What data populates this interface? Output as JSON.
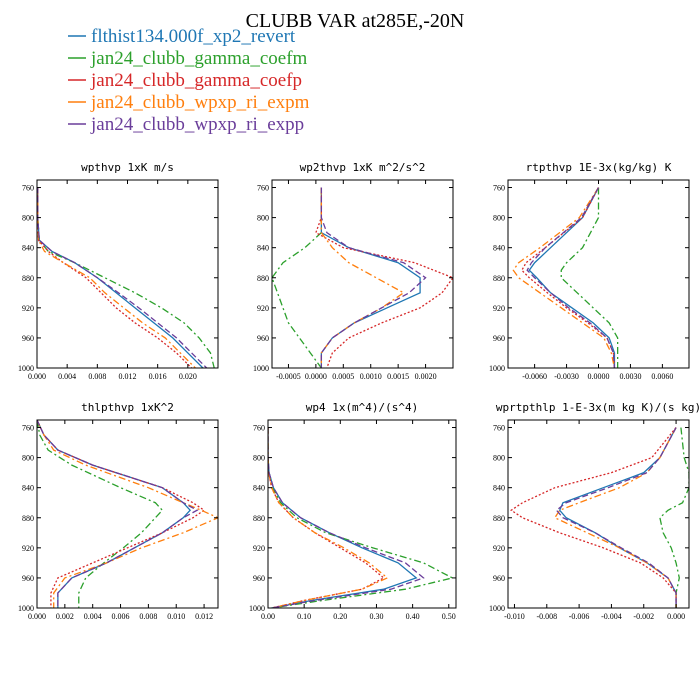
{
  "title": "CLUBB VAR at285E,-20N",
  "colors": {
    "flthist134.000f_xp2_revert": "#1f77b4",
    "jan24_clubb_gamma_coefm": "#2ca02c",
    "jan24_clubb_gamma_coefp": "#d62728",
    "jan24_clubb_wpxp_ri_expm": "#ff7f0e",
    "jan24_clubb_wpxp_ri_expp": "#6a3d9a"
  },
  "legend": [
    {
      "label": "flthist134.000f_xp2_revert",
      "color": "#1f77b4",
      "dash": "solid"
    },
    {
      "label": "jan24_clubb_gamma_coefm",
      "color": "#2ca02c",
      "dash": "dashdot"
    },
    {
      "label": "jan24_clubb_gamma_coefp",
      "color": "#d62728",
      "dash": "dotted"
    },
    {
      "label": "jan24_clubb_wpxp_ri_expm",
      "color": "#ff7f0e",
      "dash": "dashdot"
    },
    {
      "label": "jan24_clubb_wpxp_ri_expp",
      "color": "#6a3d9a",
      "dash": "dashed"
    }
  ],
  "chart_data": [
    {
      "type": "line",
      "title": "wpthvp  1xK m/s",
      "xlim": [
        0,
        0.024
      ],
      "ylim": [
        1000,
        750
      ],
      "xticks": [
        0,
        0.004,
        0.008,
        0.012,
        0.016,
        0.02
      ],
      "xtick_labels": [
        "0.000",
        "0.004",
        "0.008",
        "0.012",
        "0.016",
        "0.020"
      ],
      "yticks": [
        760,
        800,
        840,
        880,
        920,
        960,
        1000
      ],
      "ytick_labels": [
        "760",
        "800",
        "840",
        "880",
        "920",
        "960",
        "1000"
      ],
      "y": [
        760,
        800,
        830,
        845,
        860,
        880,
        900,
        920,
        940,
        960,
        980,
        1000
      ],
      "series": [
        {
          "name": "flthist134.000f_xp2_revert",
          "values": [
            0.0001,
            0.0001,
            0.0003,
            0.002,
            0.005,
            0.008,
            0.0105,
            0.013,
            0.0155,
            0.018,
            0.02,
            0.022
          ]
        },
        {
          "name": "jan24_clubb_gamma_coefm",
          "values": [
            0.0001,
            0.0001,
            0.0003,
            0.0015,
            0.005,
            0.009,
            0.013,
            0.0165,
            0.0195,
            0.0215,
            0.023,
            0.0235
          ]
        },
        {
          "name": "jan24_clubb_gamma_coefp",
          "values": [
            0.0001,
            0.0001,
            0.0002,
            0.0015,
            0.0035,
            0.0065,
            0.0085,
            0.0105,
            0.013,
            0.016,
            0.0185,
            0.0205
          ]
        },
        {
          "name": "jan24_clubb_wpxp_ri_expm",
          "values": [
            0.0001,
            0.0001,
            0.0002,
            0.001,
            0.0035,
            0.007,
            0.009,
            0.0115,
            0.014,
            0.017,
            0.019,
            0.021
          ]
        },
        {
          "name": "jan24_clubb_wpxp_ri_expp",
          "values": [
            0.0001,
            0.0001,
            0.0003,
            0.002,
            0.005,
            0.008,
            0.0108,
            0.0135,
            0.016,
            0.0185,
            0.0205,
            0.0225
          ]
        }
      ]
    },
    {
      "type": "line",
      "title": "wp2thvp  1xK m^2/s^2",
      "xlim": [
        -0.0008,
        0.0025
      ],
      "ylim": [
        1000,
        750
      ],
      "xticks": [
        -0.0005,
        0,
        0.0005,
        0.001,
        0.0015,
        0.002
      ],
      "xtick_labels": [
        "-0.0005",
        "0.0000",
        "0.0005",
        "0.0010",
        "0.0015",
        "0.0020"
      ],
      "yticks": [
        760,
        800,
        840,
        880,
        920,
        960,
        1000
      ],
      "ytick_labels": [
        "760",
        "800",
        "840",
        "880",
        "920",
        "960",
        "1000"
      ],
      "y": [
        760,
        800,
        820,
        840,
        860,
        880,
        900,
        920,
        940,
        960,
        980,
        1000
      ],
      "series": [
        {
          "name": "flthist134.000f_xp2_revert",
          "values": [
            0.0001,
            0.0001,
            0.0001,
            0.0006,
            0.0015,
            0.0019,
            0.0019,
            0.0013,
            0.0007,
            0.0003,
            0.0001,
            0.0001
          ]
        },
        {
          "name": "jan24_clubb_gamma_coefm",
          "values": [
            0.0001,
            0.0001,
            0.0001,
            -0.0002,
            -0.0006,
            -0.0008,
            -0.0007,
            -0.0006,
            -0.0005,
            -0.0003,
            -0.0001,
            0.0001
          ]
        },
        {
          "name": "jan24_clubb_gamma_coefp",
          "values": [
            0.0001,
            0.0001,
            0.0,
            0.0005,
            0.0018,
            0.0025,
            0.0023,
            0.0019,
            0.0012,
            0.0006,
            0.0003,
            0.0002
          ]
        },
        {
          "name": "jan24_clubb_wpxp_ri_expm",
          "values": [
            0.0001,
            0.0001,
            0.0001,
            0.0003,
            0.0006,
            0.0011,
            0.0016,
            0.0012,
            0.0007,
            0.0003,
            0.0001,
            0.0001
          ]
        },
        {
          "name": "jan24_clubb_wpxp_ri_expp",
          "values": [
            0.0001,
            0.0001,
            0.0002,
            0.0006,
            0.0016,
            0.002,
            0.0017,
            0.0012,
            0.0007,
            0.0003,
            0.0001,
            0.0001
          ]
        }
      ]
    },
    {
      "type": "line",
      "title": "rtpthvp  1E-3x(kg/kg) K",
      "xlim": [
        -0.0085,
        0.0085
      ],
      "ylim": [
        1000,
        750
      ],
      "xticks": [
        -0.006,
        -0.003,
        0,
        0.003,
        0.006
      ],
      "xtick_labels": [
        "-0.0060",
        "-0.0030",
        "0.0000",
        "0.0030",
        "0.0060"
      ],
      "yticks": [
        760,
        800,
        840,
        880,
        920,
        960,
        1000
      ],
      "ytick_labels": [
        "760",
        "800",
        "840",
        "880",
        "920",
        "960",
        "1000"
      ],
      "y": [
        760,
        800,
        840,
        860,
        870,
        880,
        900,
        920,
        940,
        960,
        980,
        1000
      ],
      "series": [
        {
          "name": "flthist134.000f_xp2_revert",
          "values": [
            0.0,
            -0.0015,
            -0.0045,
            -0.006,
            -0.0065,
            -0.0058,
            -0.0045,
            -0.0025,
            -0.0005,
            0.001,
            0.0015,
            0.0015
          ]
        },
        {
          "name": "jan24_clubb_gamma_coefm",
          "values": [
            0.0,
            0.0,
            -0.0015,
            -0.003,
            -0.0035,
            -0.0035,
            -0.002,
            -0.0005,
            0.001,
            0.0018,
            0.0018,
            0.0018
          ]
        },
        {
          "name": "jan24_clubb_gamma_coefp",
          "values": [
            0.0,
            -0.0015,
            -0.005,
            -0.0068,
            -0.0072,
            -0.0065,
            -0.0048,
            -0.003,
            -0.001,
            0.0008,
            0.0014,
            0.0015
          ]
        },
        {
          "name": "jan24_clubb_wpxp_ri_expm",
          "values": [
            0.0,
            -0.0018,
            -0.0055,
            -0.0075,
            -0.008,
            -0.0075,
            -0.0055,
            -0.0035,
            -0.0015,
            0.0005,
            0.0012,
            0.0015
          ]
        },
        {
          "name": "jan24_clubb_wpxp_ri_expp",
          "values": [
            0.0,
            -0.0016,
            -0.005,
            -0.0063,
            -0.0067,
            -0.006,
            -0.0045,
            -0.0028,
            -0.0008,
            0.0008,
            0.0014,
            0.0015
          ]
        }
      ]
    },
    {
      "type": "line",
      "title": "thlpthvp  1xK^2",
      "xlim": [
        0,
        0.013
      ],
      "ylim": [
        1000,
        750
      ],
      "xticks": [
        0,
        0.002,
        0.004,
        0.006,
        0.008,
        0.01,
        0.012
      ],
      "xtick_labels": [
        "0.000",
        "0.002",
        "0.004",
        "0.006",
        "0.008",
        "0.010",
        "0.012"
      ],
      "yticks": [
        760,
        800,
        840,
        880,
        920,
        960,
        1000
      ],
      "ytick_labels": [
        "760",
        "800",
        "840",
        "880",
        "920",
        "960",
        "1000"
      ],
      "y": [
        750,
        770,
        790,
        810,
        840,
        860,
        870,
        880,
        900,
        920,
        940,
        960,
        980,
        1000
      ],
      "series": [
        {
          "name": "flthist134.000f_xp2_revert",
          "values": [
            0.0,
            0.0005,
            0.0015,
            0.004,
            0.009,
            0.0105,
            0.011,
            0.0105,
            0.009,
            0.007,
            0.005,
            0.0025,
            0.0015,
            0.0015
          ]
        },
        {
          "name": "jan24_clubb_gamma_coefm",
          "values": [
            0.0,
            0.0002,
            0.0008,
            0.0025,
            0.006,
            0.0085,
            0.009,
            0.0085,
            0.0075,
            0.0062,
            0.0048,
            0.0035,
            0.003,
            0.003
          ]
        },
        {
          "name": "jan24_clubb_gamma_coefp",
          "values": [
            0.0,
            0.0005,
            0.0015,
            0.004,
            0.009,
            0.0112,
            0.012,
            0.0112,
            0.009,
            0.0065,
            0.004,
            0.0015,
            0.001,
            0.001
          ]
        },
        {
          "name": "jan24_clubb_wpxp_ri_expm",
          "values": [
            0.0,
            0.0005,
            0.0012,
            0.0035,
            0.008,
            0.0105,
            0.0118,
            0.013,
            0.0105,
            0.0075,
            0.005,
            0.002,
            0.0012,
            0.0012
          ]
        },
        {
          "name": "jan24_clubb_wpxp_ri_expp",
          "values": [
            0.0,
            0.0005,
            0.0015,
            0.004,
            0.009,
            0.0105,
            0.0115,
            0.0105,
            0.009,
            0.007,
            0.005,
            0.0025,
            0.0015,
            0.0015
          ]
        }
      ]
    },
    {
      "type": "line",
      "title": "wp4  1x(m^4)/(s^4)",
      "xlim": [
        0,
        0.52
      ],
      "ylim": [
        1000,
        750
      ],
      "xticks": [
        0,
        0.1,
        0.2,
        0.3,
        0.4,
        0.5
      ],
      "xtick_labels": [
        "0.00",
        "0.10",
        "0.20",
        "0.30",
        "0.40",
        "0.50"
      ],
      "yticks": [
        760,
        800,
        840,
        880,
        920,
        960,
        1000
      ],
      "ytick_labels": [
        "760",
        "800",
        "840",
        "880",
        "920",
        "960",
        "1000"
      ],
      "y": [
        760,
        800,
        820,
        840,
        860,
        880,
        900,
        920,
        940,
        960,
        975,
        990,
        1000
      ],
      "series": [
        {
          "name": "flthist134.000f_xp2_revert",
          "values": [
            0.0,
            0.0,
            0.003,
            0.015,
            0.04,
            0.09,
            0.17,
            0.26,
            0.36,
            0.41,
            0.32,
            0.12,
            0.01
          ]
        },
        {
          "name": "jan24_clubb_gamma_coefm",
          "values": [
            0.0,
            0.0,
            0.003,
            0.012,
            0.035,
            0.08,
            0.16,
            0.29,
            0.43,
            0.51,
            0.38,
            0.15,
            0.01
          ]
        },
        {
          "name": "jan24_clubb_gamma_coefp",
          "values": [
            0.0,
            0.0,
            0.002,
            0.01,
            0.03,
            0.07,
            0.13,
            0.2,
            0.27,
            0.32,
            0.26,
            0.1,
            0.01
          ]
        },
        {
          "name": "jan24_clubb_wpxp_ri_expm",
          "values": [
            0.0,
            0.0,
            0.002,
            0.01,
            0.03,
            0.07,
            0.13,
            0.21,
            0.28,
            0.33,
            0.26,
            0.1,
            0.01
          ]
        },
        {
          "name": "jan24_clubb_wpxp_ri_expp",
          "values": [
            0.0,
            0.0,
            0.003,
            0.015,
            0.04,
            0.09,
            0.17,
            0.27,
            0.38,
            0.43,
            0.34,
            0.13,
            0.01
          ]
        }
      ]
    },
    {
      "type": "line",
      "title": "wprtpthlp  1-E-3x(m kg K)/(s kg)",
      "xlim": [
        -0.0104,
        0.0008
      ],
      "ylim": [
        1000,
        750
      ],
      "xticks": [
        -0.01,
        -0.008,
        -0.006,
        -0.004,
        -0.002,
        0
      ],
      "xtick_labels": [
        "-0.010",
        "-0.008",
        "-0.006",
        "-0.004",
        "-0.002",
        "0.000"
      ],
      "yticks": [
        760,
        800,
        840,
        880,
        920,
        960,
        1000
      ],
      "ytick_labels": [
        "760",
        "800",
        "840",
        "880",
        "920",
        "960",
        "1000"
      ],
      "y": [
        760,
        800,
        820,
        840,
        860,
        870,
        880,
        900,
        920,
        940,
        960,
        980,
        1000
      ],
      "series": [
        {
          "name": "flthist134.000f_xp2_revert",
          "values": [
            0.0,
            -0.001,
            -0.002,
            -0.0045,
            -0.007,
            -0.0072,
            -0.0068,
            -0.005,
            -0.0035,
            -0.0018,
            -0.0005,
            0.0,
            0.0
          ]
        },
        {
          "name": "jan24_clubb_gamma_coefm",
          "values": [
            0.0003,
            0.0005,
            0.0008,
            0.0008,
            0.0004,
            -0.0005,
            -0.001,
            -0.0008,
            -0.0003,
            0.0,
            0.0002,
            0.0,
            0.0
          ]
        },
        {
          "name": "jan24_clubb_gamma_coefp",
          "values": [
            0.0,
            -0.0015,
            -0.004,
            -0.0075,
            -0.0095,
            -0.0102,
            -0.0095,
            -0.0072,
            -0.0045,
            -0.0022,
            -0.0008,
            0.0,
            0.0
          ]
        },
        {
          "name": "jan24_clubb_wpxp_ri_expm",
          "values": [
            0.0,
            -0.001,
            -0.0018,
            -0.0035,
            -0.006,
            -0.0072,
            -0.0075,
            -0.0055,
            -0.0035,
            -0.0018,
            -0.0005,
            0.0,
            0.0
          ]
        },
        {
          "name": "jan24_clubb_wpxp_ri_expp",
          "values": [
            0.0,
            -0.001,
            -0.0018,
            -0.0042,
            -0.0068,
            -0.0074,
            -0.007,
            -0.005,
            -0.0034,
            -0.0017,
            -0.0005,
            0.0,
            0.0
          ]
        }
      ]
    }
  ]
}
